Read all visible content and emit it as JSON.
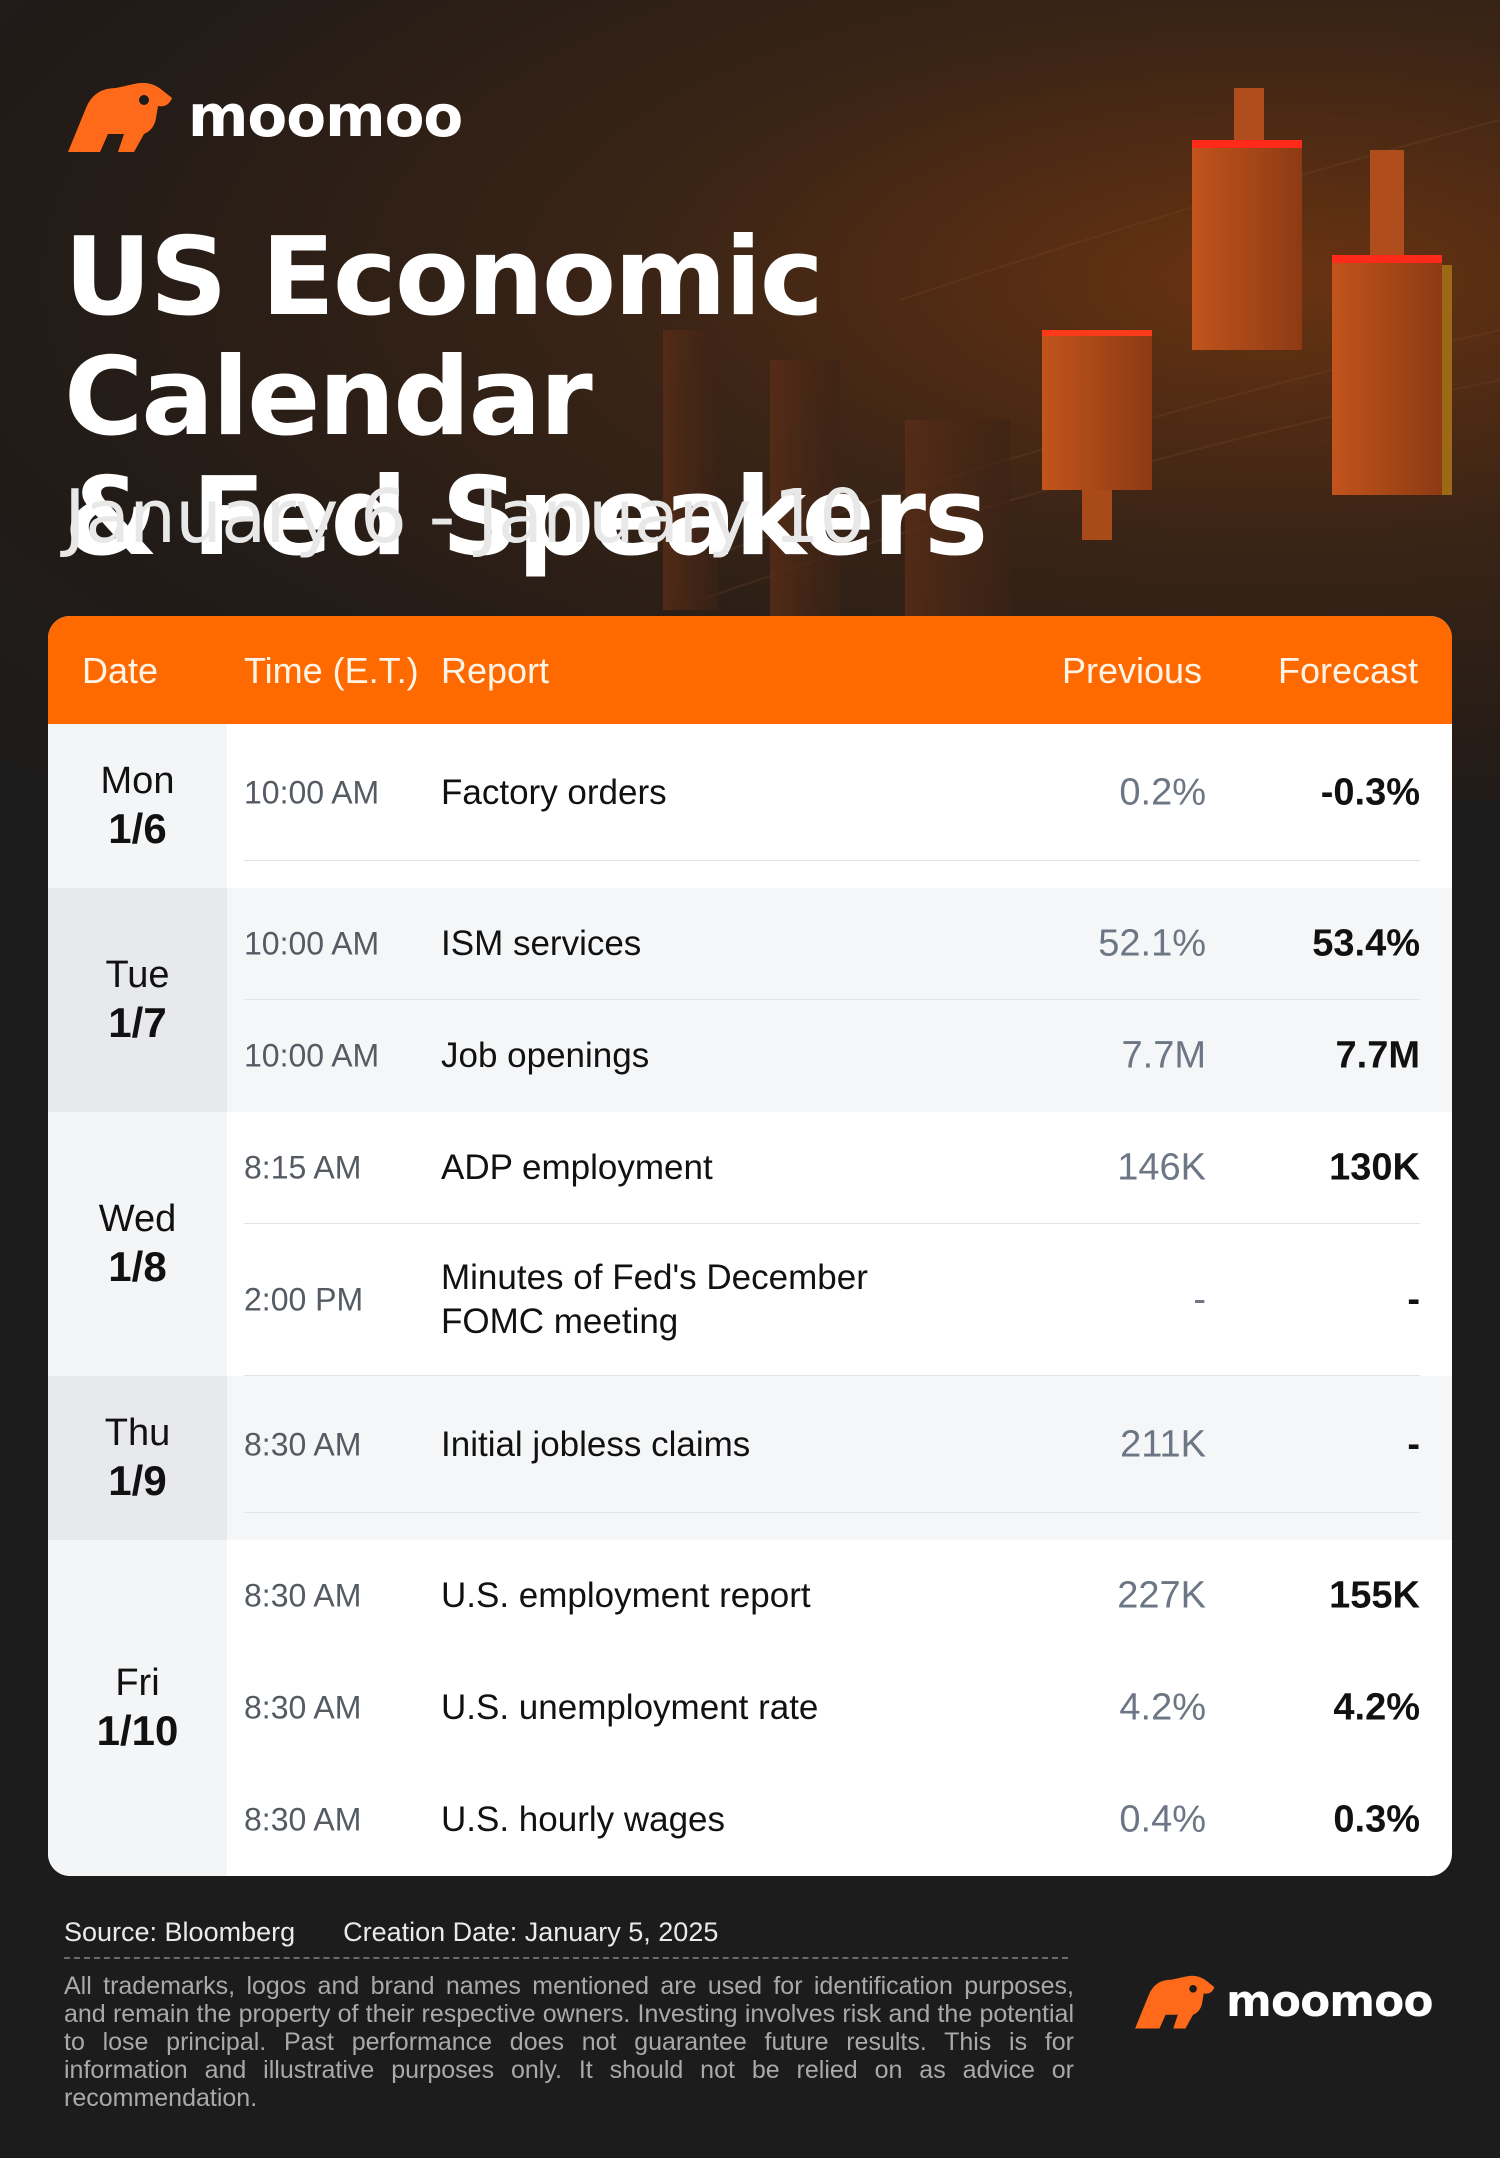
{
  "brand": {
    "name": "moomoo",
    "accent_color": "#ff6a00",
    "logo_icon": "bull-head-icon"
  },
  "header": {
    "title_line1": "US Economic Calendar",
    "title_line2": "& Fed Speakers",
    "subtitle": "January 6 - January 10"
  },
  "table": {
    "columns": {
      "date": "Date",
      "time": "Time (E.T.)",
      "report": "Report",
      "previous": "Previous",
      "forecast": "Forecast"
    },
    "groups": [
      {
        "day": "Mon",
        "date": "1/6",
        "rows": [
          {
            "time": "10:00 AM",
            "report": "Factory orders",
            "previous": "0.2%",
            "forecast": "-0.3%"
          }
        ]
      },
      {
        "day": "Tue",
        "date": "1/7",
        "rows": [
          {
            "time": "10:00 AM",
            "report": "ISM services",
            "previous": "52.1%",
            "forecast": "53.4%"
          },
          {
            "time": "10:00 AM",
            "report": "Job openings",
            "previous": "7.7M",
            "forecast": "7.7M"
          }
        ]
      },
      {
        "day": "Wed",
        "date": "1/8",
        "rows": [
          {
            "time": "8:15 AM",
            "report": "ADP employment",
            "previous": "146K",
            "forecast": "130K"
          },
          {
            "time": "2:00 PM",
            "report": "Minutes of Fed's December FOMC meeting",
            "previous": "-",
            "forecast": "-"
          }
        ]
      },
      {
        "day": "Thu",
        "date": "1/9",
        "rows": [
          {
            "time": "8:30 AM",
            "report": "Initial jobless claims",
            "previous": "211K",
            "forecast": "-"
          }
        ]
      },
      {
        "day": "Fri",
        "date": "1/10",
        "rows": [
          {
            "time": "8:30 AM",
            "report": "U.S. employment report",
            "previous": "227K",
            "forecast": "155K"
          },
          {
            "time": "8:30 AM",
            "report": "U.S. unemployment rate",
            "previous": "4.2%",
            "forecast": "4.2%"
          },
          {
            "time": "8:30 AM",
            "report": "U.S. hourly wages",
            "previous": "0.4%",
            "forecast": "0.3%"
          }
        ]
      }
    ]
  },
  "footer": {
    "source": "Source: Bloomberg",
    "creation_date": "Creation Date: January 5, 2025",
    "disclaimer": "All trademarks, logos and brand names mentioned are used for identification purposes, and remain the property of their respective owners. Investing involves risk and the potential to lose principal. Past performance does not guarantee future results. This is for information and illustrative purposes only. It should not be relied on as advice or recommendation."
  }
}
